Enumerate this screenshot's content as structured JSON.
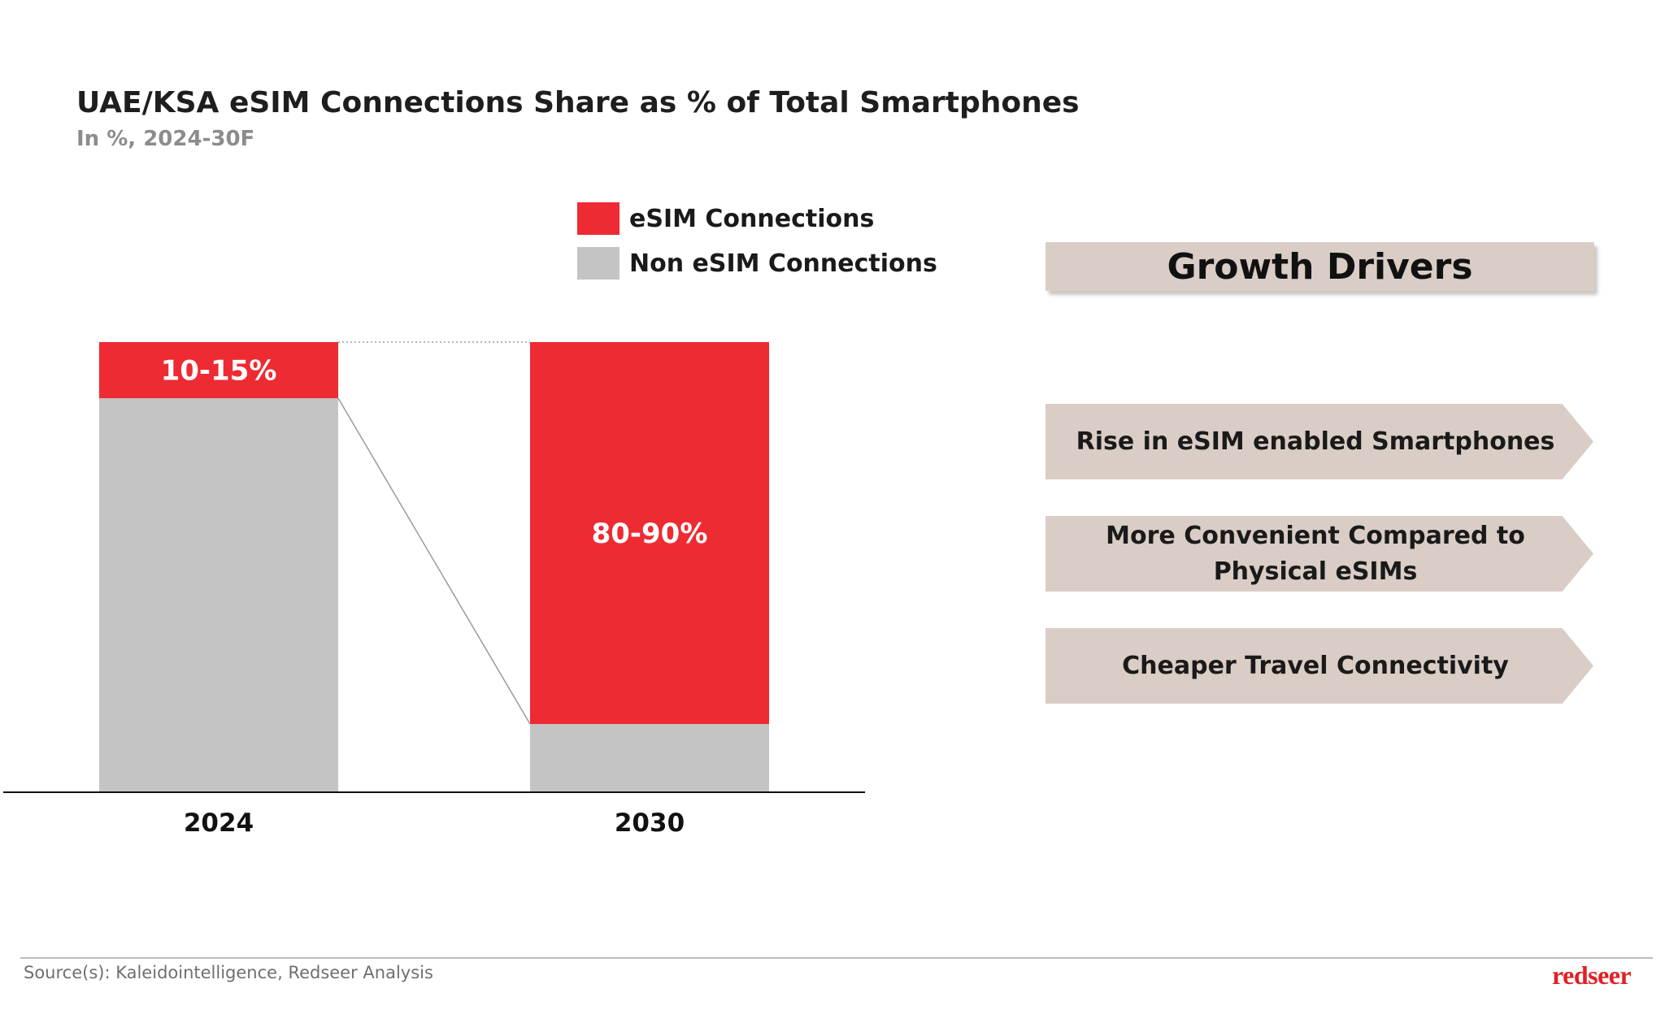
{
  "colors": {
    "esim": "#ee2a33",
    "non_esim": "#c4c4c4",
    "driver_fill": "#d9cdc6"
  },
  "chart_data": {
    "type": "bar",
    "stacked": true,
    "title": "UAE/KSA eSIM Connections Share as % of Total Smartphones",
    "subtitle": "In %, 2024-30F",
    "categories": [
      "2024",
      "2030"
    ],
    "series": [
      {
        "name": "eSIM Connections",
        "values": [
          12.5,
          85
        ],
        "labels": [
          "10-15%",
          "80-90%"
        ]
      },
      {
        "name": "Non eSIM Connections",
        "values": [
          87.5,
          15
        ]
      }
    ],
    "ylim": [
      0,
      100
    ],
    "legend": "top-right"
  },
  "growth_drivers": {
    "header": "Growth Drivers",
    "items": [
      "Rise in eSIM enabled Smartphones",
      "More Convenient Compared to Physical eSIMs",
      "Cheaper Travel Connectivity"
    ]
  },
  "footer": {
    "source": "Source(s): Kaleidointelligence, Redseer Analysis",
    "logo": "redseer"
  }
}
